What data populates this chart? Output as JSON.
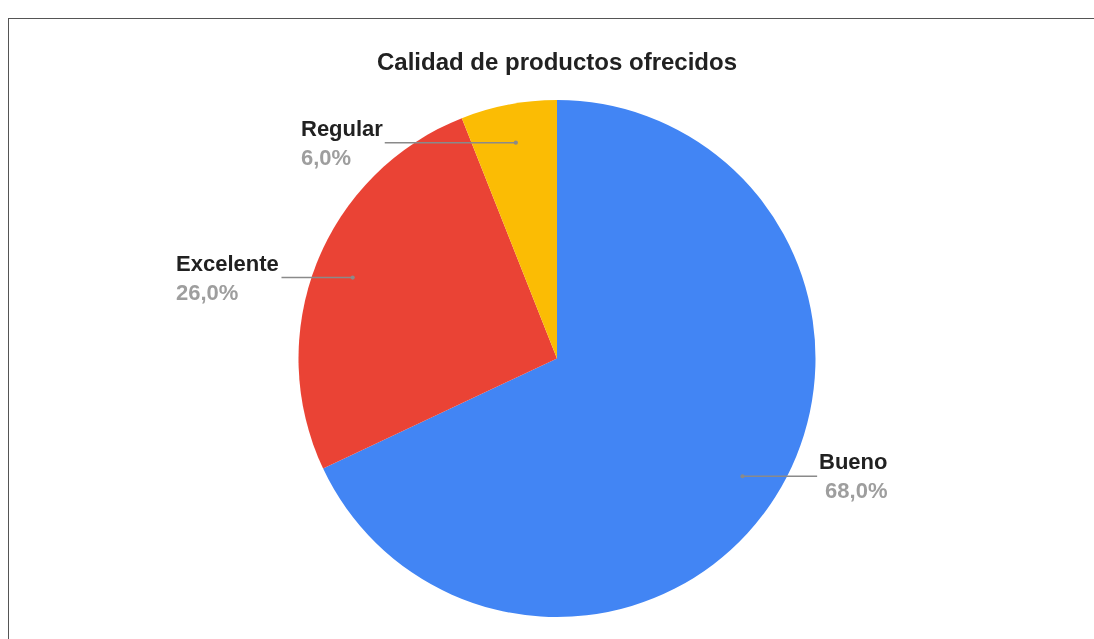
{
  "chart_data": {
    "type": "pie",
    "title": "Calidad de productos ofrecidos",
    "categories": [
      "Bueno",
      "Excelente",
      "Regular"
    ],
    "values": [
      68,
      26,
      6
    ],
    "colors": [
      "#4285f4",
      "#ea4335",
      "#fbbc04"
    ],
    "value_labels": [
      "68,0%",
      "26,0%",
      "6,0%"
    ]
  }
}
